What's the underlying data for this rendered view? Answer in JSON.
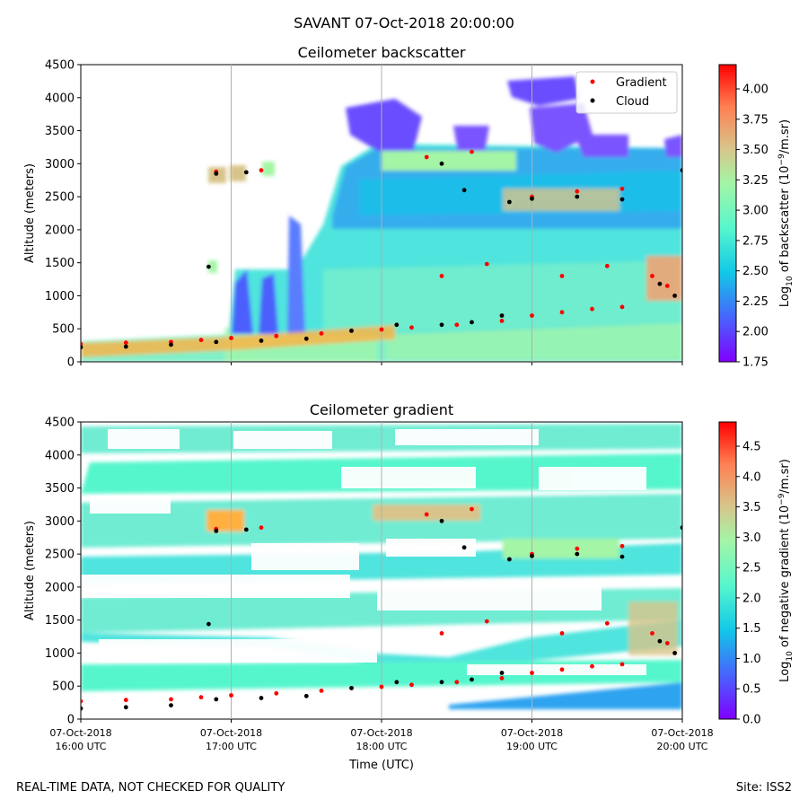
{
  "suptitle": "SAVANT 07-Oct-2018 20:00:00",
  "footer": {
    "left": "REAL-TIME DATA, NOT CHECKED FOR QUALITY",
    "right": "Site: ISS2"
  },
  "colors": {
    "gradient_marker": "#ff0000",
    "cloud_marker": "#000000",
    "colormap": [
      "#8000ff",
      "#4b5efd",
      "#12c8e6",
      "#57f6cd",
      "#a4f5a6",
      "#d8c48a",
      "#ff7e52",
      "#ff0000"
    ]
  },
  "chart_data": [
    {
      "type": "heatmap",
      "title": "Ceilometer backscatter",
      "ylabel": "Altitude (meters)",
      "xlabel": "",
      "ylim": [
        0,
        4500
      ],
      "yticks": [
        "0",
        "500",
        "1000",
        "1500",
        "2000",
        "2500",
        "3000",
        "3500",
        "4000",
        "4500"
      ],
      "xticks": [],
      "xlim": [
        "07-Oct-2018 16:00 UTC",
        "07-Oct-2018 20:00 UTC"
      ],
      "grid": "vertical",
      "colorbar": {
        "label_prefix": "Log",
        "label_sub": "10",
        "label_main": " of backscatter (10",
        "label_sup": "−9",
        "label_end": "/m.sr)",
        "range": [
          1.75,
          4.2
        ],
        "ticks": [
          "1.75",
          "2.00",
          "2.25",
          "2.50",
          "2.75",
          "3.00",
          "3.25",
          "3.50",
          "3.75",
          "4.00"
        ]
      },
      "legend": {
        "placement": "top-right",
        "entries": [
          "Gradient",
          "Cloud"
        ]
      },
      "series": [
        {
          "name": "Gradient",
          "points": [
            [
              0.0,
              270
            ],
            [
              0.3,
              290
            ],
            [
              0.6,
              300
            ],
            [
              0.8,
              330
            ],
            [
              1.0,
              360
            ],
            [
              1.3,
              390
            ],
            [
              1.6,
              430
            ],
            [
              1.8,
              470
            ],
            [
              2.0,
              490
            ],
            [
              2.2,
              520
            ],
            [
              2.5,
              560
            ],
            [
              2.8,
              620
            ],
            [
              3.0,
              700
            ],
            [
              3.2,
              750
            ],
            [
              3.4,
              800
            ],
            [
              3.6,
              830
            ],
            [
              3.0,
              2500
            ],
            [
              3.3,
              2580
            ],
            [
              3.6,
              2620
            ],
            [
              2.3,
              3100
            ],
            [
              2.6,
              3180
            ],
            [
              0.9,
              2880
            ],
            [
              1.2,
              2900
            ],
            [
              2.4,
              1300
            ],
            [
              2.7,
              1480
            ],
            [
              3.2,
              1300
            ],
            [
              3.5,
              1450
            ],
            [
              3.8,
              1300
            ],
            [
              3.9,
              1150
            ]
          ]
        },
        {
          "name": "Cloud",
          "points": [
            [
              0.0,
              220
            ],
            [
              0.3,
              230
            ],
            [
              0.6,
              260
            ],
            [
              0.9,
              300
            ],
            [
              1.2,
              320
            ],
            [
              1.5,
              350
            ],
            [
              1.8,
              470
            ],
            [
              2.1,
              560
            ],
            [
              2.4,
              560
            ],
            [
              2.6,
              600
            ],
            [
              2.8,
              700
            ],
            [
              0.9,
              2850
            ],
            [
              1.1,
              2870
            ],
            [
              0.85,
              1440
            ],
            [
              2.4,
              3000
            ],
            [
              2.55,
              2600
            ],
            [
              2.85,
              2420
            ],
            [
              3.0,
              2470
            ],
            [
              3.3,
              2500
            ],
            [
              3.6,
              2460
            ],
            [
              3.85,
              1180
            ],
            [
              3.95,
              1000
            ],
            [
              4.0,
              2900
            ]
          ]
        }
      ]
    },
    {
      "type": "heatmap",
      "title": "Ceilometer gradient",
      "ylabel": "Altitude (meters)",
      "xlabel": "Time (UTC)",
      "ylim": [
        0,
        4500
      ],
      "yticks": [
        "0",
        "500",
        "1000",
        "1500",
        "2000",
        "2500",
        "3000",
        "3500",
        "4000",
        "4500"
      ],
      "xticks": [
        [
          "07-Oct-2018",
          "16:00 UTC"
        ],
        [
          "07-Oct-2018",
          "17:00 UTC"
        ],
        [
          "07-Oct-2018",
          "18:00 UTC"
        ],
        [
          "07-Oct-2018",
          "19:00 UTC"
        ],
        [
          "07-Oct-2018",
          "20:00 UTC"
        ]
      ],
      "xlim": [
        "07-Oct-2018 16:00 UTC",
        "07-Oct-2018 20:00 UTC"
      ],
      "grid": "vertical",
      "colorbar": {
        "label_prefix": "Log",
        "label_sub": "10",
        "label_main": " of negative gradient (10",
        "label_sup": "−9",
        "label_end": "/m.sr)",
        "range": [
          0.0,
          4.9
        ],
        "ticks": [
          "0.0",
          "0.5",
          "1.0",
          "1.5",
          "2.0",
          "2.5",
          "3.0",
          "3.5",
          "4.0",
          "4.5"
        ]
      },
      "series": [
        {
          "name": "Gradient",
          "points": [
            [
              0.0,
              270
            ],
            [
              0.3,
              290
            ],
            [
              0.6,
              300
            ],
            [
              0.8,
              330
            ],
            [
              1.0,
              360
            ],
            [
              1.3,
              390
            ],
            [
              1.6,
              430
            ],
            [
              1.8,
              470
            ],
            [
              2.0,
              490
            ],
            [
              2.2,
              520
            ],
            [
              2.5,
              560
            ],
            [
              2.8,
              620
            ],
            [
              3.0,
              700
            ],
            [
              3.2,
              750
            ],
            [
              3.4,
              800
            ],
            [
              3.6,
              830
            ],
            [
              3.0,
              2500
            ],
            [
              3.3,
              2580
            ],
            [
              3.6,
              2620
            ],
            [
              2.3,
              3100
            ],
            [
              2.6,
              3180
            ],
            [
              0.9,
              2880
            ],
            [
              1.2,
              2900
            ],
            [
              2.4,
              1300
            ],
            [
              2.7,
              1480
            ],
            [
              3.2,
              1300
            ],
            [
              3.5,
              1450
            ],
            [
              3.8,
              1300
            ],
            [
              3.9,
              1150
            ]
          ]
        },
        {
          "name": "Cloud",
          "points": [
            [
              0.0,
              160
            ],
            [
              0.3,
              180
            ],
            [
              0.6,
              210
            ],
            [
              0.9,
              300
            ],
            [
              1.2,
              320
            ],
            [
              1.5,
              350
            ],
            [
              1.8,
              470
            ],
            [
              2.1,
              560
            ],
            [
              2.4,
              560
            ],
            [
              2.6,
              600
            ],
            [
              2.8,
              700
            ],
            [
              0.9,
              2850
            ],
            [
              1.1,
              2870
            ],
            [
              0.85,
              1440
            ],
            [
              2.4,
              3000
            ],
            [
              2.55,
              2600
            ],
            [
              2.85,
              2420
            ],
            [
              3.0,
              2470
            ],
            [
              3.3,
              2500
            ],
            [
              3.6,
              2460
            ],
            [
              3.85,
              1180
            ],
            [
              3.95,
              1000
            ],
            [
              4.0,
              2900
            ]
          ]
        }
      ]
    }
  ]
}
